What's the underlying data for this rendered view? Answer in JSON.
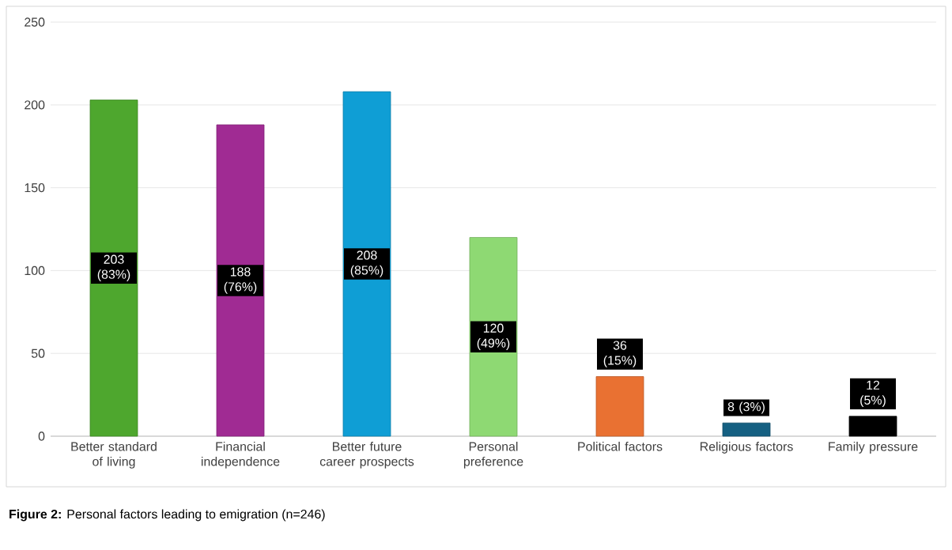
{
  "chart_data": {
    "type": "bar",
    "categories": [
      "Better standard of living",
      "Financial independence",
      "Better future career prospects",
      "Personal preference",
      "Political factors",
      "Religious factors",
      "Family pressure"
    ],
    "values": [
      203,
      188,
      208,
      120,
      36,
      8,
      12
    ],
    "colors": [
      "#4ea72e",
      "#a02b93",
      "#0f9ed5",
      "#8ed973",
      "#e97132",
      "#156082",
      "#000000"
    ],
    "value_labels": [
      "203 (83%)",
      "188 (76%)",
      "208 (85%)",
      "120 (49%)",
      "36 (15%)",
      "8 (3%)",
      "12 (5%)"
    ],
    "ylim": [
      0,
      250
    ],
    "yticks": [
      0,
      50,
      100,
      150,
      200,
      250
    ],
    "grid": "y",
    "annotations": [
      "**Figure 2:** Personal factors leading to emigration (n=246)"
    ]
  }
}
